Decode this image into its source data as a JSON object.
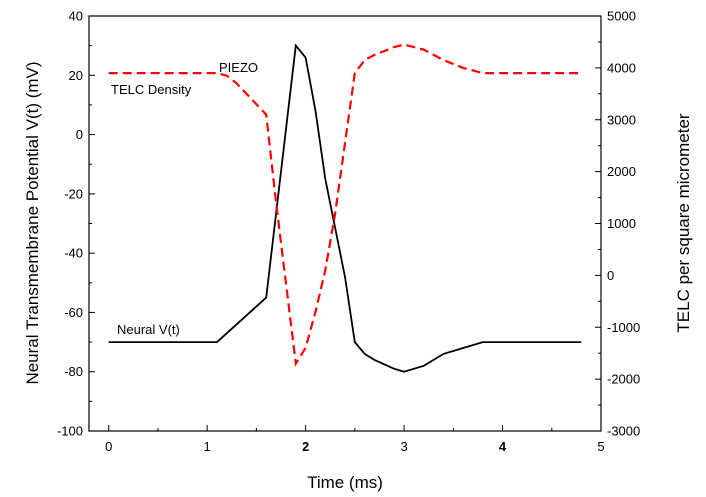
{
  "chart_data": {
    "type": "line",
    "title": "",
    "xlabel": "Time (ms)",
    "ylabel_left": "Neural Transmembrane Potential V(t) (mV)",
    "ylabel_right": "TELC per square micrometer",
    "xlim": [
      -0.2,
      5
    ],
    "ylim_left": [
      -100,
      40
    ],
    "ylim_right": [
      -3000,
      5000
    ],
    "x_ticks": [
      "0",
      "1",
      "2",
      "3",
      "4",
      "5"
    ],
    "y_left_ticks": [
      "40",
      "20",
      "0",
      "-20",
      "-40",
      "-60",
      "-80",
      "-100"
    ],
    "y_right_ticks": [
      "5000",
      "4000",
      "3000",
      "2000",
      "1000",
      "0",
      "-1000",
      "-2000",
      "-3000"
    ],
    "grid": false,
    "series": [
      {
        "name": "Neural V(t)",
        "axis": "left",
        "color": "#000000",
        "style": "solid",
        "x": [
          0,
          1.1,
          1.6,
          1.9,
          2.0,
          2.1,
          2.2,
          2.4,
          2.5,
          2.6,
          2.7,
          2.9,
          3.0,
          3.2,
          3.4,
          3.6,
          3.8,
          4.0,
          4.8
        ],
        "y": [
          -70,
          -70,
          -55,
          30,
          26,
          8,
          -15,
          -48,
          -70,
          -74,
          -76,
          -79,
          -80,
          -78,
          -74,
          -72,
          -70,
          -70,
          -70
        ]
      },
      {
        "name": "TELC Density",
        "axis": "right",
        "color": "#ff0000",
        "style": "dashed",
        "x": [
          0,
          1.1,
          1.2,
          1.3,
          1.4,
          1.6,
          1.7,
          1.9,
          2.0,
          2.1,
          2.2,
          2.3,
          2.5,
          2.6,
          2.7,
          2.9,
          3.0,
          3.2,
          3.4,
          3.6,
          3.8,
          4.0,
          4.8
        ],
        "y": [
          3900,
          3900,
          3850,
          3700,
          3500,
          3100,
          1400,
          -1700,
          -1400,
          -700,
          100,
          1200,
          3900,
          4150,
          4250,
          4400,
          4450,
          4350,
          4150,
          4000,
          3900,
          3900,
          3900
        ]
      }
    ],
    "annotations": [
      "PIEZO",
      "TELC Density",
      "Neural V(t)"
    ]
  }
}
